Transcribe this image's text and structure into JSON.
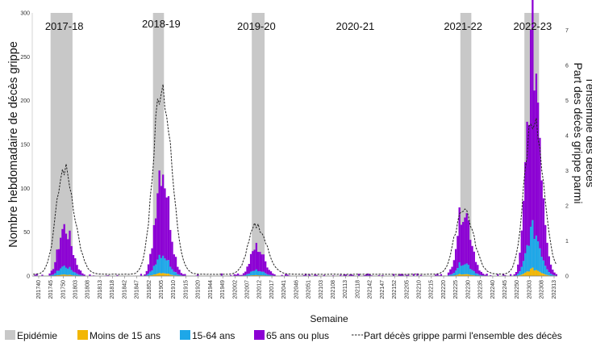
{
  "chart_data": {
    "type": "bar",
    "stacked": true,
    "xlabel": "Semaine",
    "ylabel": "Nombre hebdomadaire de décès grippe",
    "y2label_line1": "Part des décès grippe parmi",
    "y2label_line2": "l'ensemble des décès",
    "ylim": [
      0,
      300
    ],
    "yticks": [
      0,
      50,
      100,
      150,
      200,
      250,
      300
    ],
    "y2lim": [
      0,
      7.5
    ],
    "y2ticks": [
      0,
      1,
      2,
      3,
      4,
      5,
      6,
      7
    ],
    "xtick_labels": [
      "201740",
      "201745",
      "201750",
      "201803",
      "201808",
      "201813",
      "201818",
      "201842",
      "201847",
      "201852",
      "201905",
      "201910",
      "201915",
      "201920",
      "201944",
      "201949",
      "202002",
      "202007",
      "202012",
      "202017",
      "202041",
      "202046",
      "202051",
      "202103",
      "202108",
      "202113",
      "202118",
      "202142",
      "202147",
      "202152",
      "202205",
      "202210",
      "202215",
      "202220",
      "202225",
      "202230",
      "202235",
      "202240",
      "202245",
      "202250",
      "202303",
      "202308",
      "202313"
    ],
    "seasons": [
      {
        "label": "2017-18",
        "epi_start": "201750",
        "epi_end": "201809"
      },
      {
        "label": "2018-19",
        "epi_start": "201902",
        "epi_end": "201907"
      },
      {
        "label": "2019-20",
        "epi_start": "202004",
        "epi_end": "202010"
      },
      {
        "label": "2020-21",
        "epi_start": "",
        "epi_end": ""
      },
      {
        "label": "2021-22",
        "epi_start": "202213",
        "epi_end": "202218"
      },
      {
        "label": "2022-23",
        "epi_start": "202248",
        "epi_end": "202303"
      }
    ],
    "legend": [
      {
        "key": "epidemie",
        "label": "Epidémie",
        "color": "#c8c8c8",
        "kind": "bar"
      },
      {
        "key": "moins15",
        "label": "Moins de 15 ans",
        "color": "#f2b705",
        "kind": "bar"
      },
      {
        "key": "a15_64",
        "label": "15-64 ans",
        "color": "#1ea7e8",
        "kind": "bar"
      },
      {
        "key": "plus65",
        "label": "65 ans ou plus",
        "color": "#8c00d4",
        "kind": "bar"
      },
      {
        "key": "part",
        "label": "Part décès grippe parmi l'ensemble des décès",
        "color": "#222222",
        "kind": "line"
      }
    ],
    "legend_position": "bottom",
    "peaks": [
      {
        "week": "201805",
        "total": 55,
        "part_pct": 3.0
      },
      {
        "week": "201906",
        "total": 127,
        "part_pct": 5.4
      },
      {
        "week": "202006",
        "total": 33,
        "part_pct": 1.4
      },
      {
        "week": "202214",
        "total": 78,
        "part_pct": 1.9
      },
      {
        "week": "202252",
        "total": 262,
        "part_pct": 4.5
      }
    ]
  }
}
